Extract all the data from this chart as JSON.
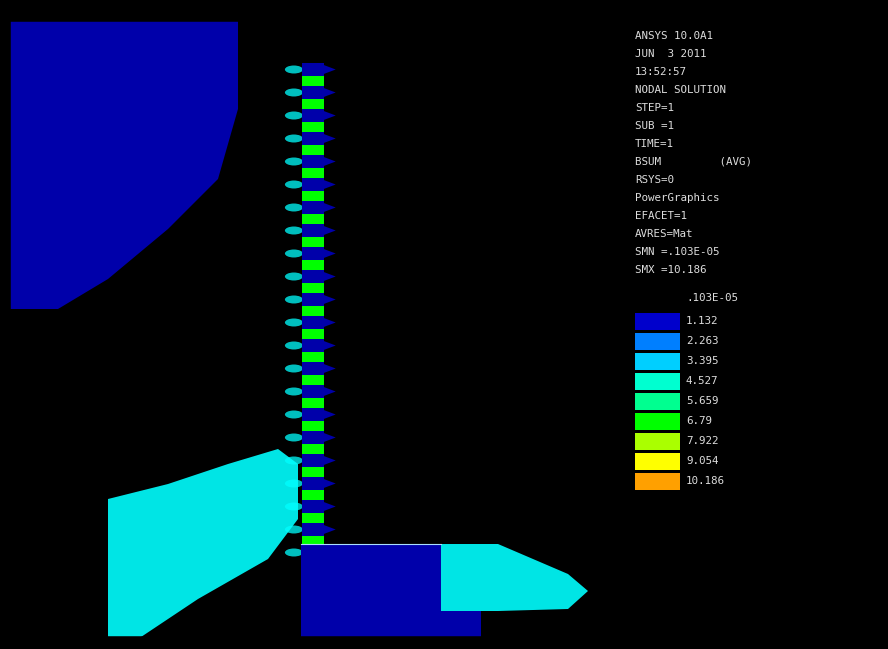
{
  "bg_color": "#000000",
  "plot_bg": "#00AADD",
  "dark_blue": "#0000AA",
  "cyan_bright": "#00FFFF",
  "green_bright": "#00FF00",
  "info_text_lines": [
    "ANSYS 10.0A1",
    "JUN  3 2011",
    "13:52:57",
    "NODAL SOLUTION",
    "STEP=1",
    "SUB =1",
    "TIME=1",
    "BSUM         (AVG)",
    "RSYS=0",
    "PowerGraphics",
    "EFACET=1",
    "AVRES=Mat",
    "SMN =.103E-05",
    "SMX =10.186"
  ],
  "legend_labels": [
    ".103E-05",
    "1.132",
    "2.263",
    "3.395",
    "4.527",
    "5.659",
    "6.79",
    "7.922",
    "9.054",
    "10.186"
  ],
  "legend_colors": [
    "#0000CC",
    "#007FFF",
    "#00CFFF",
    "#00FFD0",
    "#00FF90",
    "#00FF00",
    "#AAFF00",
    "#FFFF00",
    "#FFA000",
    "#FF0000"
  ]
}
